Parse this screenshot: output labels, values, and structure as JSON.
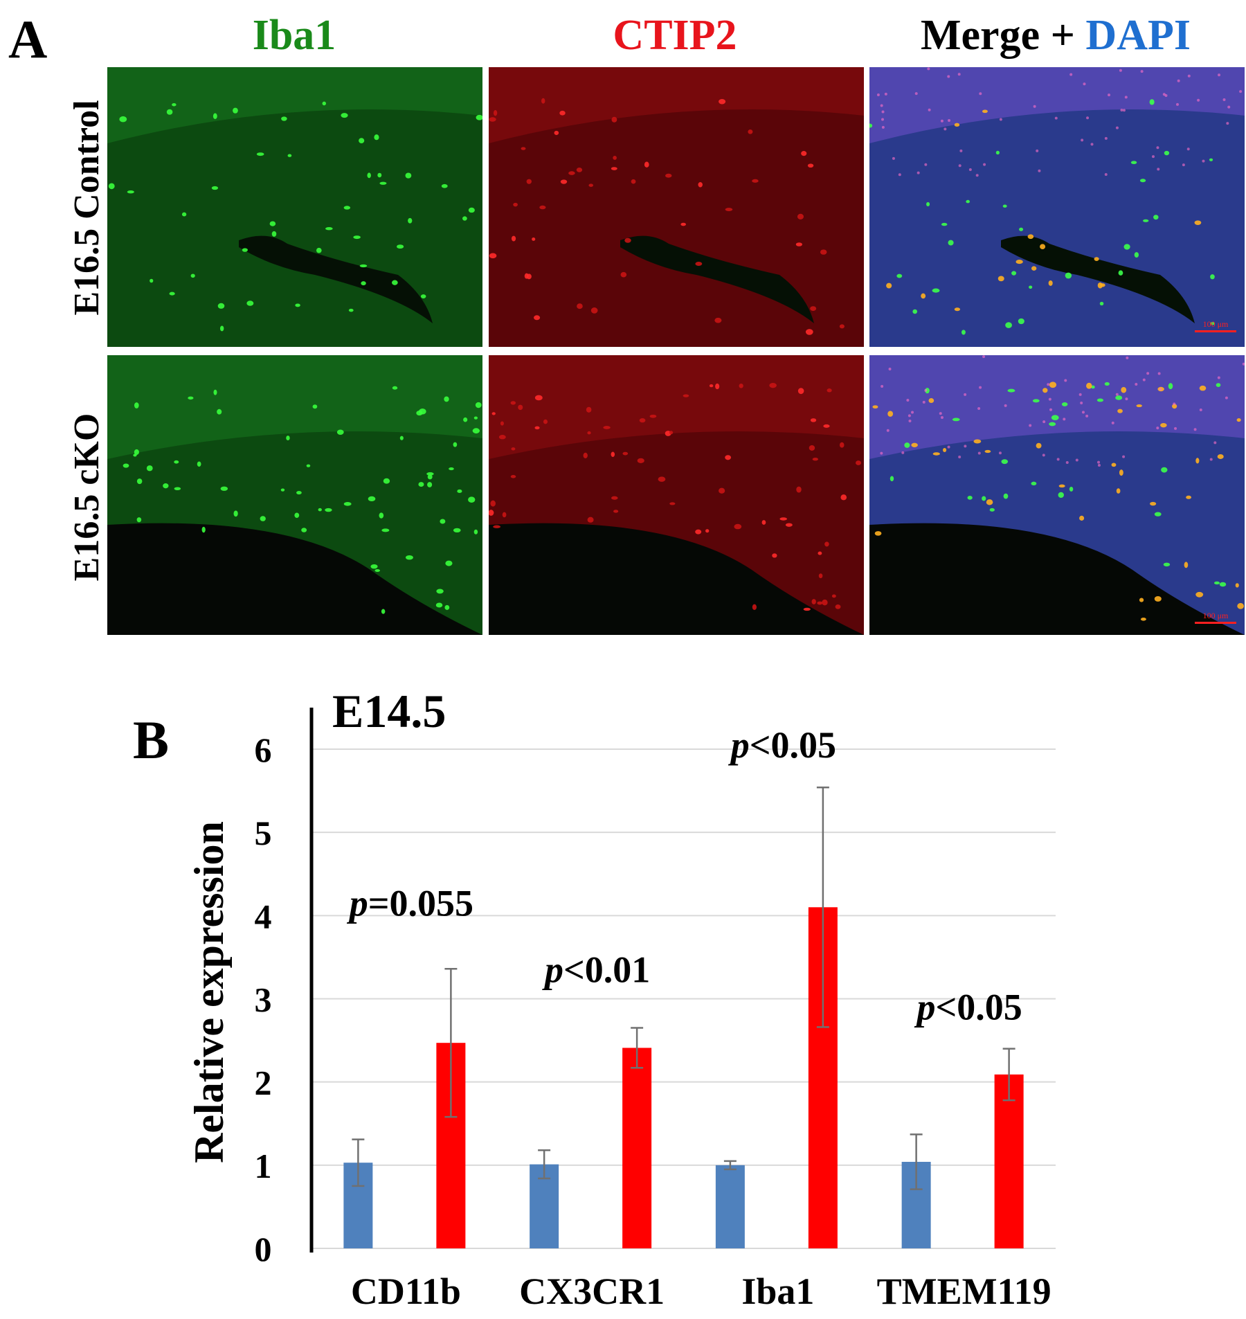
{
  "panel_a": {
    "letter": "A",
    "columns": [
      {
        "label": "Iba1",
        "color": "#1a8a1a"
      },
      {
        "label": "CTIP2",
        "color": "#e8141c"
      },
      {
        "label_prefix": "Merge + ",
        "label_suffix": "DAPI",
        "prefix_color": "#000000",
        "suffix_color": "#1f6fd0"
      }
    ],
    "rows": [
      {
        "label": "E16.5 Control"
      },
      {
        "label": "E16.5 cKO"
      }
    ],
    "scale_bar_label": "100 μm"
  },
  "panel_b": {
    "letter": "B"
  },
  "chart_data": {
    "type": "bar",
    "title": "E14.5",
    "ylabel": "Relative expression",
    "xlabel": "",
    "ylim": [
      0,
      6
    ],
    "yticks": [
      0,
      1,
      2,
      3,
      4,
      5,
      6
    ],
    "grid": true,
    "categories": [
      "CD11b",
      "CX3CR1",
      "Iba1",
      "TMEM119"
    ],
    "series": [
      {
        "values": [
          1.03,
          1.01,
          1.0,
          1.04
        ],
        "errors": [
          0.28,
          0.17,
          0.05,
          0.33
        ],
        "color": "#4f81bd"
      },
      {
        "values": [
          2.47,
          2.41,
          4.1,
          2.09
        ],
        "errors": [
          0.89,
          0.24,
          1.44,
          0.31
        ],
        "color": "#ff0000"
      }
    ],
    "annotations": [
      {
        "category": "CD11b",
        "italic": "p",
        "text": "=0.055",
        "y": 4.0
      },
      {
        "category": "CX3CR1",
        "italic": "p",
        "text": "<0.01",
        "y": 3.2
      },
      {
        "category": "Iba1",
        "italic": "p",
        "text": "<0.05",
        "y": 5.9
      },
      {
        "category": "TMEM119",
        "italic": "p",
        "text": "<0.05",
        "y": 2.75
      }
    ]
  }
}
